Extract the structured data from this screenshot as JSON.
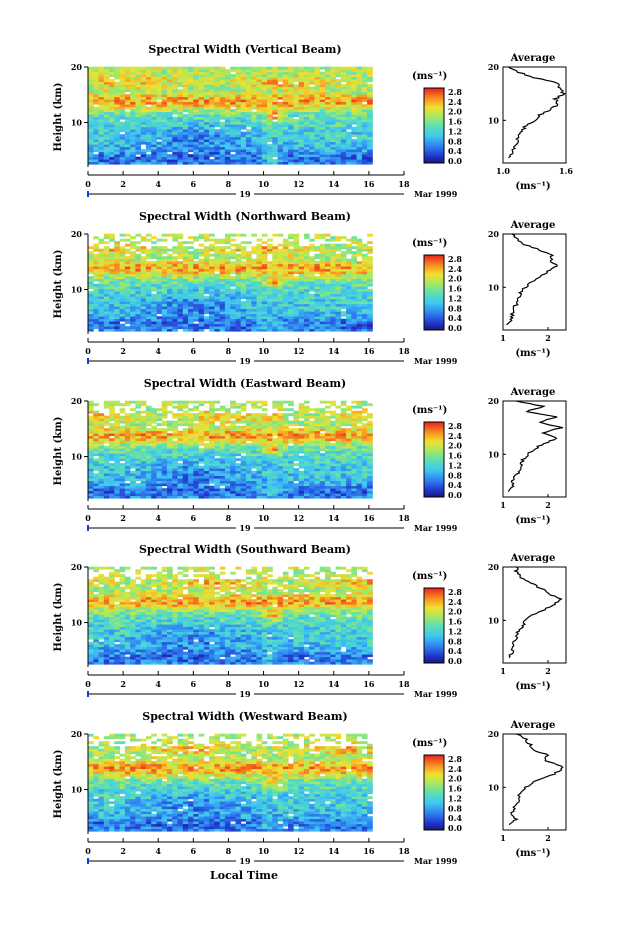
{
  "figure": {
    "xlabel": "Local Time",
    "unit": "(ms⁻¹)",
    "day_label": "19",
    "date_label": "Mar 1999",
    "avg_title": "Average"
  },
  "chart_data": [
    {
      "type": "heatmap",
      "title": "Spectral Width (Vertical Beam)",
      "ylabel": "Height (km)",
      "xlabel": "",
      "xlim": [
        0,
        18
      ],
      "ylim": [
        2,
        20
      ],
      "x_ticks": [
        0,
        2,
        4,
        6,
        8,
        10,
        12,
        14,
        16,
        18
      ],
      "y_ticks": [
        10,
        20
      ],
      "data_extent_x": [
        0,
        16.2
      ],
      "colorbar": {
        "unit": "(ms⁻¹)",
        "ticks": [
          "0.0",
          "0.4",
          "0.8",
          "1.2",
          "1.6",
          "2.0",
          "2.4",
          "2.8"
        ]
      },
      "profile": {
        "title": "Average",
        "xlabel": "(ms⁻¹)",
        "xlim": [
          1.0,
          1.6
        ],
        "x_tick_labels": [
          "1.0",
          "1.6"
        ],
        "height": [
          3,
          4,
          5,
          6,
          7,
          8,
          9,
          10,
          11,
          12,
          13,
          14,
          15,
          16,
          17,
          18,
          19,
          20
        ],
        "width": [
          1.05,
          1.1,
          1.1,
          1.13,
          1.15,
          1.18,
          1.22,
          1.3,
          1.35,
          1.45,
          1.52,
          1.5,
          1.58,
          1.55,
          1.52,
          1.3,
          1.15,
          1.05
        ]
      }
    },
    {
      "type": "heatmap",
      "title": "Spectral Width (Northward Beam)",
      "ylabel": "Height (km)",
      "xlabel": "",
      "xlim": [
        0,
        18
      ],
      "ylim": [
        2,
        20
      ],
      "x_ticks": [
        0,
        2,
        4,
        6,
        8,
        10,
        12,
        14,
        16,
        18
      ],
      "y_ticks": [
        10,
        20
      ],
      "data_extent_x": [
        0,
        16.2
      ],
      "colorbar": {
        "unit": "(ms⁻¹)",
        "ticks": [
          "0.0",
          "0.4",
          "0.8",
          "1.2",
          "1.6",
          "2.0",
          "2.4",
          "2.8"
        ]
      },
      "profile": {
        "title": "Average",
        "xlabel": "(ms⁻¹)",
        "xlim": [
          1.0,
          2.4
        ],
        "x_tick_labels": [
          "1",
          "2"
        ],
        "height": [
          3,
          4,
          5,
          6,
          7,
          8,
          9,
          10,
          11,
          12,
          13,
          14,
          15,
          16,
          17,
          18,
          19,
          20
        ],
        "width": [
          1.1,
          1.2,
          1.2,
          1.25,
          1.3,
          1.35,
          1.4,
          1.5,
          1.65,
          1.8,
          2.0,
          2.2,
          2.05,
          2.1,
          1.8,
          1.5,
          1.3,
          1.2
        ]
      }
    },
    {
      "type": "heatmap",
      "title": "Spectral Width (Eastward Beam)",
      "ylabel": "Height (km)",
      "xlabel": "",
      "xlim": [
        0,
        18
      ],
      "ylim": [
        2,
        20
      ],
      "x_ticks": [
        0,
        2,
        4,
        6,
        8,
        10,
        12,
        14,
        16,
        18
      ],
      "y_ticks": [
        10,
        20
      ],
      "data_extent_x": [
        0,
        16.2
      ],
      "colorbar": {
        "unit": "(ms⁻¹)",
        "ticks": [
          "0.0",
          "0.4",
          "0.8",
          "1.2",
          "1.6",
          "2.0",
          "2.4",
          "2.8"
        ]
      },
      "profile": {
        "title": "Average",
        "xlabel": "(ms⁻¹)",
        "xlim": [
          1.0,
          2.4
        ],
        "x_tick_labels": [
          "1",
          "2"
        ],
        "height": [
          3,
          4,
          5,
          6,
          7,
          8,
          9,
          10,
          11,
          12,
          13,
          14,
          15,
          16,
          17,
          18,
          19,
          20
        ],
        "width": [
          1.1,
          1.25,
          1.2,
          1.3,
          1.35,
          1.4,
          1.45,
          1.55,
          1.7,
          1.9,
          2.2,
          1.9,
          2.3,
          1.8,
          2.2,
          1.5,
          1.9,
          1.3
        ]
      }
    },
    {
      "type": "heatmap",
      "title": "Spectral Width (Southward Beam)",
      "ylabel": "Height (km)",
      "xlabel": "",
      "xlim": [
        0,
        18
      ],
      "ylim": [
        2,
        20
      ],
      "x_ticks": [
        0,
        2,
        4,
        6,
        8,
        10,
        12,
        14,
        16,
        18
      ],
      "y_ticks": [
        10,
        20
      ],
      "data_extent_x": [
        0,
        16.2
      ],
      "colorbar": {
        "unit": "(ms⁻¹)",
        "ticks": [
          "0.0",
          "0.4",
          "0.8",
          "1.2",
          "1.6",
          "2.0",
          "2.4",
          "2.8"
        ]
      },
      "profile": {
        "title": "Average",
        "xlabel": "(ms⁻¹)",
        "xlim": [
          1.0,
          2.4
        ],
        "x_tick_labels": [
          "1",
          "2"
        ],
        "height": [
          3,
          4,
          5,
          6,
          7,
          8,
          9,
          10,
          11,
          12,
          13,
          14,
          15,
          16,
          17,
          18,
          19,
          20
        ],
        "width": [
          1.1,
          1.2,
          1.2,
          1.25,
          1.3,
          1.35,
          1.45,
          1.5,
          1.65,
          1.9,
          2.15,
          2.3,
          2.0,
          1.85,
          1.6,
          1.4,
          1.3,
          1.3
        ]
      }
    },
    {
      "type": "heatmap",
      "title": "Spectral Width (Westward Beam)",
      "ylabel": "Height (km)",
      "xlabel": "Local Time",
      "xlim": [
        0,
        18
      ],
      "ylim": [
        2,
        20
      ],
      "x_ticks": [
        0,
        2,
        4,
        6,
        8,
        10,
        12,
        14,
        16,
        18
      ],
      "y_ticks": [
        10,
        20
      ],
      "data_extent_x": [
        0,
        16.2
      ],
      "colorbar": {
        "unit": "(ms⁻¹)",
        "ticks": [
          "0.0",
          "0.4",
          "0.8",
          "1.2",
          "1.6",
          "2.0",
          "2.4",
          "2.8"
        ]
      },
      "profile": {
        "title": "Average",
        "xlabel": "(ms⁻¹)",
        "xlim": [
          1.0,
          2.4
        ],
        "x_tick_labels": [
          "1",
          "2"
        ],
        "height": [
          3,
          4,
          5,
          6,
          7,
          8,
          9,
          10,
          11,
          12,
          13,
          14,
          15,
          16,
          17,
          18,
          19,
          20
        ],
        "width": [
          1.1,
          1.3,
          1.2,
          1.25,
          1.3,
          1.35,
          1.4,
          1.5,
          1.7,
          2.0,
          2.25,
          2.3,
          1.9,
          2.0,
          1.7,
          1.6,
          1.5,
          1.3
        ]
      }
    }
  ]
}
